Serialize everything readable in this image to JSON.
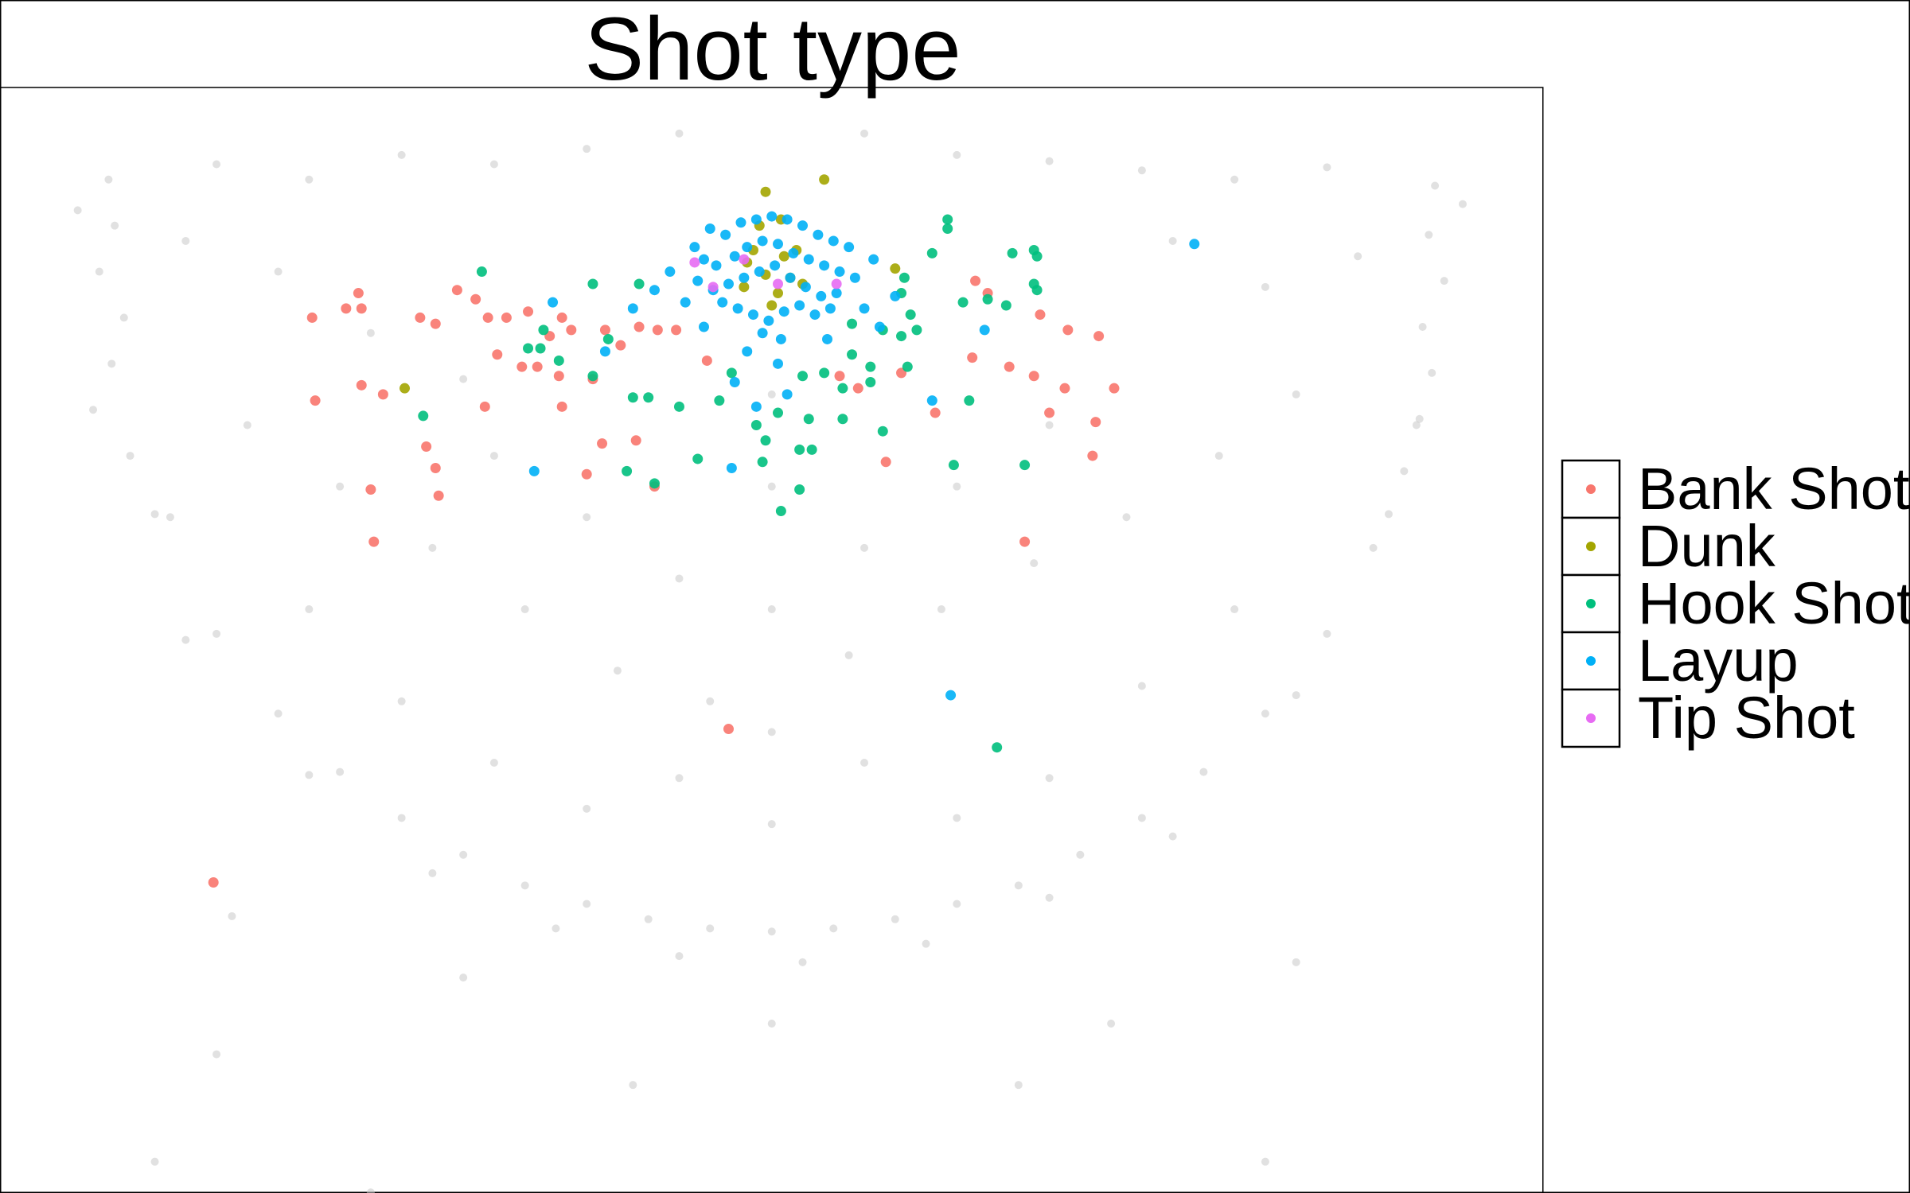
{
  "chart_data": {
    "type": "scatter",
    "title": "Shot type",
    "xlim": [
      -250,
      250
    ],
    "ylim": [
      -60,
      300
    ],
    "y_inverted": true,
    "legend": "right",
    "series": [
      {
        "color": "#c8c8c8",
        "x": [
          -200,
          -180,
          -160,
          -140,
          -120,
          -100,
          -80,
          -60,
          -40,
          -20,
          0,
          20,
          40,
          60,
          80,
          100,
          120,
          140,
          160,
          180,
          200,
          -190,
          -150,
          -110,
          -70,
          -30,
          10,
          50,
          90,
          130,
          170,
          210,
          -215,
          -213,
          -218,
          -210,
          -214,
          -220,
          -208,
          215,
          213,
          218,
          211,
          214,
          209,
          205,
          -225,
          224,
          -180,
          -150,
          -120,
          -90,
          -60,
          -30,
          30,
          60,
          90,
          120,
          150,
          180,
          -160,
          -130,
          -100,
          -170,
          -140,
          -110,
          -80,
          -50,
          -20,
          0,
          25,
          55,
          85,
          115,
          145,
          170,
          160,
          130,
          -60,
          -30,
          0,
          30,
          60,
          -90,
          90,
          -150,
          150,
          -120,
          120,
          -90,
          90,
          -60,
          60,
          0,
          -30,
          30,
          0,
          0,
          -180,
          -130,
          -45,
          80,
          160,
          -200,
          -100,
          110,
          0,
          170,
          -175,
          -190,
          190,
          -195,
          195
        ],
        "values": [
          79,
          118,
          144,
          163,
          178,
          190,
          200,
          206,
          211,
          214,
          215,
          214,
          211,
          206,
          200,
          190,
          178,
          163,
          144,
          118,
          79,
          120,
          164,
          196,
          214,
          223,
          225,
          219,
          204,
          184,
          138,
          48,
          -30,
          -15,
          0,
          15,
          30,
          45,
          60,
          -28,
          -12,
          3,
          18,
          33,
          50,
          65,
          -20,
          -22,
          -35,
          -30,
          -38,
          -35,
          -40,
          -45,
          -45,
          -38,
          -36,
          -33,
          -30,
          -34,
          0,
          20,
          35,
          50,
          70,
          90,
          110,
          130,
          140,
          150,
          125,
          110,
          95,
          80,
          60,
          40,
          5,
          -10,
          80,
          100,
          110,
          90,
          70,
          60,
          50,
          110,
          110,
          140,
          135,
          160,
          165,
          175,
          178,
          180,
          165,
          160,
          70,
          40,
          255,
          300,
          265,
          265,
          290,
          290,
          230,
          245,
          245,
          225,
          210,
          -10,
          -5,
          80,
          90
        ]
      },
      {
        "name": "Bank Shot",
        "color": "#f8766d",
        "x": [
          -149,
          -134,
          -133,
          -138,
          -114,
          -109,
          -102,
          -96,
          -92,
          -86,
          -79,
          -68,
          -65,
          -72,
          -89,
          -81,
          -76,
          -69,
          -58,
          -54,
          -49,
          -37,
          -43,
          -31,
          -21,
          -148,
          -133,
          -126,
          -93,
          -112,
          -109,
          -108,
          -130,
          -129,
          -68,
          -55,
          -44,
          -60,
          -38,
          -14,
          -181,
          66,
          70,
          87,
          96,
          106,
          65,
          77,
          85,
          95,
          111,
          90,
          105,
          104,
          53,
          37,
          82,
          28,
          22,
          42
        ],
        "values": [
          15,
          7,
          12,
          12,
          15,
          17,
          6,
          9,
          15,
          15,
          13,
          15,
          19,
          21,
          27,
          31,
          31,
          34,
          35,
          19,
          24,
          19,
          18,
          19,
          29,
          42,
          37,
          40,
          44,
          57,
          64,
          73,
          71,
          88,
          44,
          56,
          55,
          66,
          70,
          149,
          199,
          3,
          7,
          14,
          19,
          21,
          28,
          31,
          34,
          38,
          38,
          46,
          49,
          60,
          46,
          62,
          88,
          38,
          34,
          33
        ]
      },
      {
        "name": "Dunk",
        "color": "#a3a500",
        "x": [
          -2,
          17,
          3,
          -4,
          -6,
          -8,
          -2,
          4,
          8,
          6,
          2,
          -9,
          0,
          -119,
          40,
          10
        ],
        "values": [
          -26,
          -30,
          -17,
          -15,
          -7,
          -3,
          1,
          -5,
          -7,
          2,
          7,
          5,
          11,
          38,
          -1,
          4
        ]
      },
      {
        "name": "Hook Shot",
        "color": "#00bf7d",
        "x": [
          -94,
          57,
          57,
          52,
          78,
          85,
          86,
          85,
          86,
          76,
          70,
          62,
          43,
          42,
          45,
          36,
          26,
          42,
          47,
          26,
          32,
          44,
          32,
          23,
          17,
          10,
          2,
          -5,
          -2,
          -3,
          9,
          13,
          9,
          3,
          -13,
          -17,
          -24,
          -30,
          -40,
          -45,
          -38,
          -47,
          -58,
          -69,
          -75,
          -79,
          -74,
          -58,
          -53,
          -113,
          82,
          59,
          73,
          64,
          36,
          23,
          12,
          -43
        ],
        "values": [
          0,
          -17,
          -14,
          -6,
          -6,
          -7,
          -5,
          4,
          6,
          11,
          9,
          10,
          2,
          7,
          14,
          19,
          17,
          21,
          19,
          27,
          31,
          31,
          36,
          38,
          33,
          34,
          46,
          50,
          55,
          62,
          58,
          58,
          71,
          78,
          33,
          42,
          61,
          44,
          41,
          41,
          69,
          65,
          34,
          29,
          25,
          25,
          19,
          4,
          22,
          47,
          63,
          63,
          155,
          42,
          52,
          48,
          48,
          4
        ]
      },
      {
        "name": "Layup",
        "color": "#00b0f6",
        "x": [
          -20,
          -15,
          -10,
          -5,
          0,
          5,
          10,
          15,
          20,
          25,
          -25,
          -22,
          -18,
          -12,
          -8,
          -3,
          2,
          7,
          12,
          17,
          22,
          27,
          -24,
          -19,
          -14,
          -9,
          -4,
          1,
          6,
          11,
          16,
          21,
          -16,
          -11,
          -6,
          -1,
          4,
          9,
          14,
          19,
          -3,
          3,
          -28,
          30,
          -33,
          33,
          -8,
          2,
          -12,
          5,
          -5,
          18,
          -22,
          35,
          40,
          -38,
          -45,
          137,
          -77,
          58,
          -13,
          52,
          69,
          -54,
          -71
        ],
        "values": [
          -14,
          -12,
          -16,
          -17,
          -18,
          -17,
          -15,
          -12,
          -10,
          -8,
          -8,
          -4,
          -2,
          -5,
          -8,
          -10,
          -9,
          -6,
          -4,
          -2,
          0,
          2,
          3,
          6,
          4,
          2,
          0,
          -2,
          2,
          5,
          8,
          7,
          10,
          12,
          14,
          16,
          13,
          11,
          14,
          12,
          20,
          22,
          10,
          12,
          0,
          -4,
          26,
          30,
          36,
          40,
          44,
          22,
          18,
          18,
          8,
          6,
          12,
          -9,
          65,
          138,
          64,
          42,
          19,
          26,
          10
        ]
      },
      {
        "name": "Tip Shot",
        "color": "#e76bf3",
        "x": [
          -19,
          2,
          21,
          -9,
          -25
        ],
        "values": [
          5,
          4,
          4,
          -4,
          -3
        ]
      }
    ]
  }
}
